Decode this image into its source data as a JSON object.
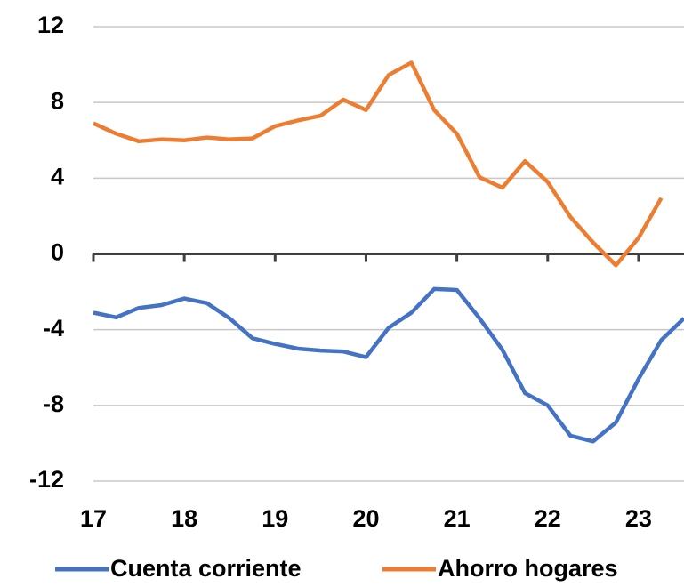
{
  "chart_data": {
    "type": "line",
    "x": [
      17,
      17.25,
      17.5,
      17.75,
      18,
      18.25,
      18.5,
      18.75,
      19,
      19.25,
      19.5,
      19.75,
      20,
      20.25,
      20.5,
      20.75,
      21,
      21.25,
      21.5,
      21.75,
      22,
      22.25,
      22.5,
      22.75,
      23,
      23.25,
      23.5
    ],
    "series": [
      {
        "name": "Cuenta corriente",
        "color": "#4472c4",
        "values": [
          -3.1,
          -3.35,
          -2.85,
          -2.7,
          -2.35,
          -2.6,
          -3.4,
          -4.45,
          -4.75,
          -5.0,
          -5.1,
          -5.15,
          -5.45,
          -3.9,
          -3.1,
          -1.85,
          -1.9,
          -3.4,
          -5.05,
          -7.35,
          -8.0,
          -9.6,
          -9.9,
          -8.9,
          -6.6,
          -4.55,
          -3.4
        ]
      },
      {
        "name": "Ahorro hogares",
        "color": "#ed7d31",
        "values": [
          6.9,
          6.35,
          5.95,
          6.05,
          6.0,
          6.15,
          6.05,
          6.1,
          6.75,
          7.05,
          7.3,
          8.15,
          7.6,
          9.45,
          10.1,
          7.6,
          6.35,
          4.05,
          3.5,
          4.9,
          3.8,
          1.95,
          0.6,
          -0.6,
          0.85,
          2.95,
          null
        ]
      }
    ],
    "xlim": [
      17,
      23.5
    ],
    "xticks": [
      17,
      18,
      19,
      20,
      21,
      22,
      23
    ],
    "ylim": [
      -12,
      12
    ],
    "yticks": [
      -12,
      -8,
      -4,
      0,
      4,
      8,
      12
    ],
    "grid": true,
    "legend": "bottom"
  }
}
